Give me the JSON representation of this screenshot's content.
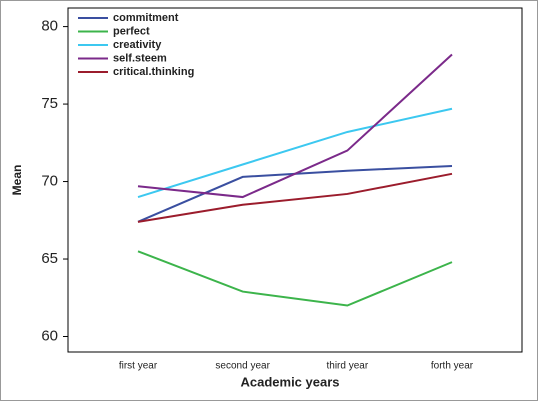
{
  "chart_data": {
    "type": "line",
    "x_label": "Academic years",
    "y_label": "Mean",
    "categories": [
      "first year",
      "second year",
      "third year",
      "forth year"
    ],
    "series": [
      {
        "name": "commitment",
        "color": "#3a4fa0",
        "values": [
          67.4,
          70.3,
          70.7,
          71.0
        ]
      },
      {
        "name": "perfect",
        "color": "#3cb44b",
        "values": [
          65.5,
          62.9,
          62.0,
          64.8
        ]
      },
      {
        "name": "creativity",
        "color": "#3cc8f0",
        "values": [
          69.0,
          71.1,
          73.2,
          74.7
        ]
      },
      {
        "name": "self.steem",
        "color": "#7b2a8a",
        "values": [
          69.7,
          69.0,
          72.0,
          78.2
        ]
      },
      {
        "name": "critical.thinking",
        "color": "#9b1c2c",
        "values": [
          67.4,
          68.5,
          69.2,
          70.5
        ]
      }
    ],
    "ylim": [
      59,
      81.2
    ],
    "yticks": [
      60,
      65,
      70,
      75,
      80
    ],
    "legend": "upper left"
  }
}
